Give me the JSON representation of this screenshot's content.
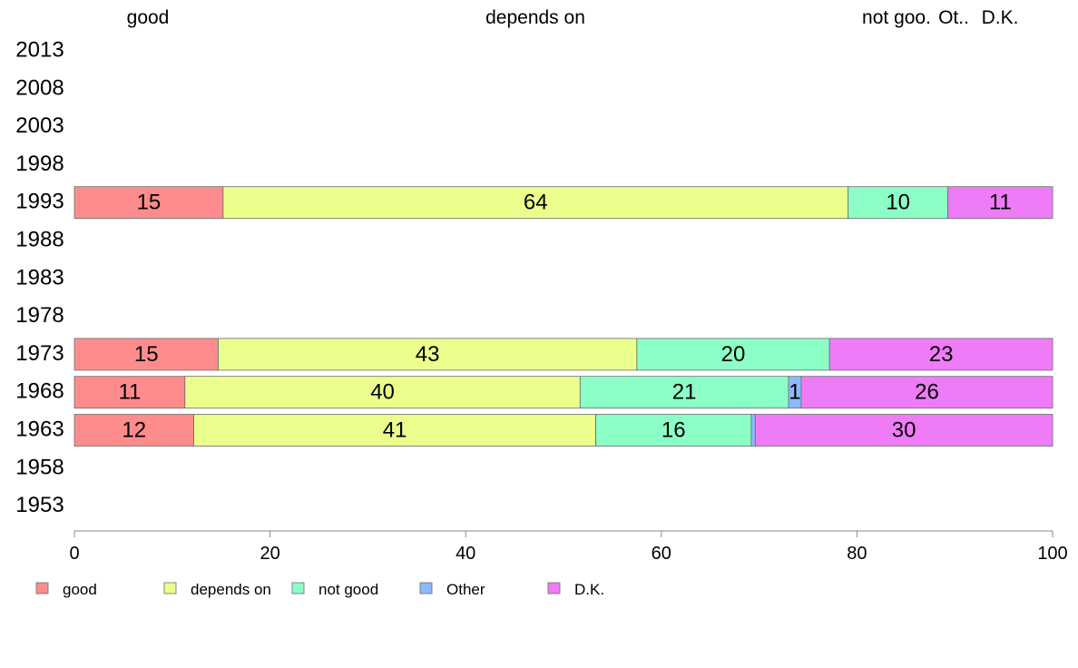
{
  "chart_data": {
    "type": "bar",
    "orientation": "horizontal",
    "stacked": true,
    "title": "",
    "xlabel": "",
    "ylabel": "",
    "xlim": [
      0,
      100
    ],
    "x_ticks": [
      0,
      20,
      40,
      60,
      80,
      100
    ],
    "grid": false,
    "legend_position": "bottom",
    "categories": [
      "2013",
      "2008",
      "2003",
      "1998",
      "1993",
      "1988",
      "1983",
      "1978",
      "1973",
      "1968",
      "1963",
      "1958",
      "1953"
    ],
    "top_labels": [
      "good",
      "depends on",
      "not goo.",
      "Ot..",
      "D.K."
    ],
    "series": [
      {
        "name": "good",
        "color": "#ff8c8c",
        "values": [
          null,
          null,
          null,
          null,
          15.2,
          null,
          null,
          null,
          14.7,
          11.3,
          12.2,
          null,
          null
        ]
      },
      {
        "name": "depends on",
        "color": "#ebff8c",
        "values": [
          null,
          null,
          null,
          null,
          63.9,
          null,
          null,
          null,
          42.8,
          40.4,
          41.1,
          null,
          null
        ]
      },
      {
        "name": "not good",
        "color": "#8cffc6",
        "values": [
          null,
          null,
          null,
          null,
          10.2,
          null,
          null,
          null,
          19.7,
          21.3,
          15.9,
          null,
          null
        ]
      },
      {
        "name": "Other",
        "color": "#8cbaff",
        "values": [
          null,
          null,
          null,
          null,
          0,
          null,
          null,
          null,
          0,
          1.3,
          0.4,
          null,
          null
        ]
      },
      {
        "name": "D.K.",
        "color": "#ef7cf7",
        "values": [
          null,
          null,
          null,
          null,
          10.7,
          null,
          null,
          null,
          22.8,
          25.7,
          30.4,
          null,
          null
        ]
      }
    ],
    "data_labels": {
      "1993": [
        "15",
        "64",
        "10",
        "",
        "11"
      ],
      "1973": [
        "15",
        "43",
        "20",
        "",
        "23"
      ],
      "1968": [
        "11",
        "40",
        "21",
        "1",
        "26"
      ],
      "1963": [
        "12",
        "41",
        "16",
        "",
        "30"
      ]
    }
  }
}
